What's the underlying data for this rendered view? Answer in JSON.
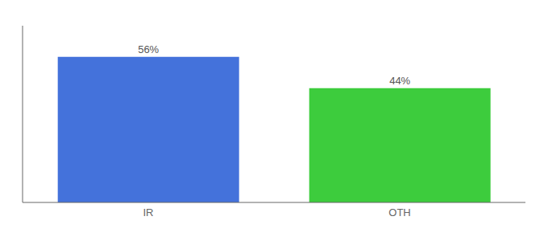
{
  "chart_data": {
    "type": "bar",
    "categories": [
      "IR",
      "OTH"
    ],
    "values": [
      56,
      44
    ],
    "value_labels": [
      "56%",
      "44%"
    ],
    "colors": [
      "#4472db",
      "#3dcc3d"
    ],
    "ylim": [
      0,
      68
    ],
    "data_labels": true,
    "tick_labels": "x",
    "grid": false
  }
}
